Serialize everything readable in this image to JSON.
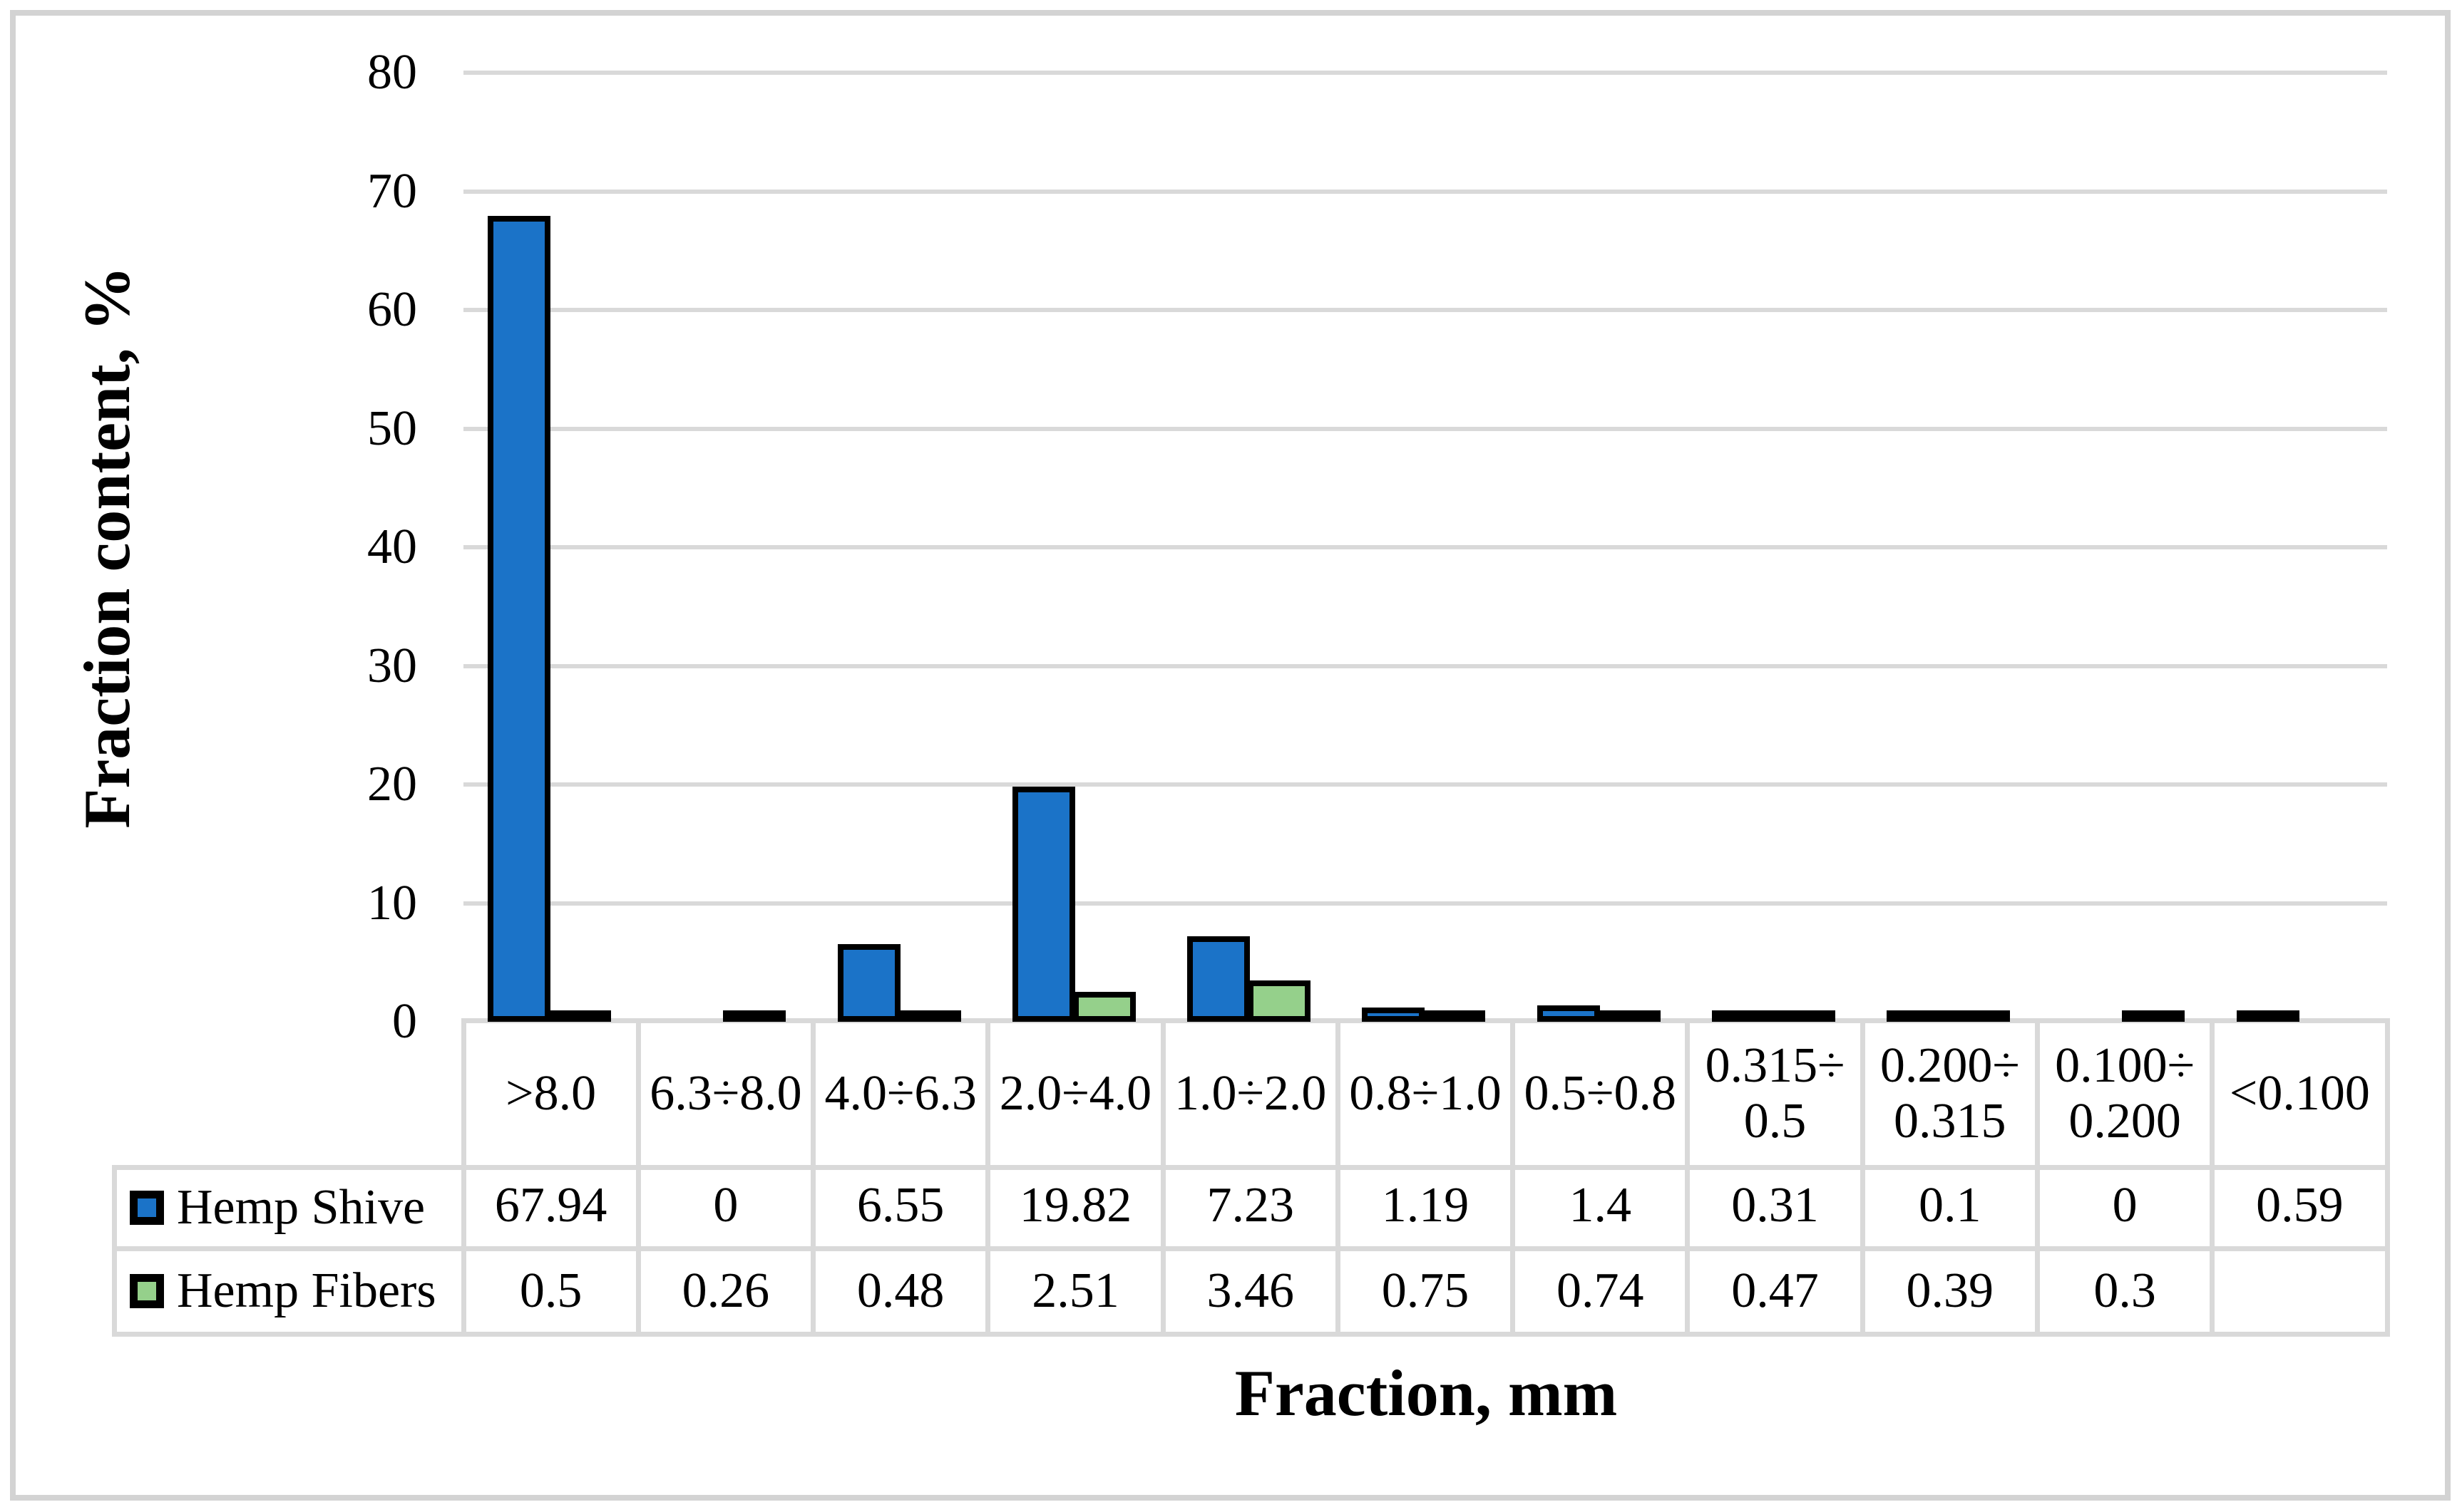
{
  "chart_data": {
    "type": "bar",
    "title": "",
    "xlabel": "Fraction, mm",
    "ylabel": "Fraction content, %",
    "ylim": [
      0,
      80
    ],
    "yticks": [
      0,
      10,
      20,
      30,
      40,
      50,
      60,
      70,
      80
    ],
    "grid": true,
    "legend_position": "table-left",
    "categories": [
      ">8.0",
      "6.3÷8.0",
      "4.0÷6.3",
      "2.0÷4.0",
      "1.0÷2.0",
      "0.8÷1.0",
      "0.5÷0.8",
      "0.315÷0.5",
      "0.200÷0.315",
      "0.100÷0.200",
      "<0.100"
    ],
    "category_display_labels": [
      ">8.0",
      "6.3÷8.0",
      "4.0÷6.3",
      "2.0÷4.0",
      "1.0÷2.0",
      "0.8÷1.0",
      "0.5÷0.8",
      "0.315÷\n0.5",
      "0.200÷\n0.315",
      "0.100÷\n0.200",
      "<0.100"
    ],
    "series": [
      {
        "name": "Hemp Shive",
        "color": "#1b73c8",
        "values": [
          67.94,
          0,
          6.55,
          19.82,
          7.23,
          1.19,
          1.4,
          0.31,
          0.1,
          0,
          0.59
        ],
        "display_values": [
          "67.94",
          "0",
          "6.55",
          "19.82",
          "7.23",
          "1.19",
          "1.4",
          "0.31",
          "0.1",
          "0",
          "0.59"
        ]
      },
      {
        "name": "Hemp Fibers",
        "color": "#95d08b",
        "values": [
          0.5,
          0.26,
          0.48,
          2.51,
          3.46,
          0.75,
          0.74,
          0.47,
          0.39,
          0.3,
          null
        ],
        "display_values": [
          "0.5",
          "0.26",
          "0.48",
          "2.51",
          "3.46",
          "0.75",
          "0.74",
          "0.47",
          "0.39",
          "0.3",
          ""
        ]
      }
    ]
  },
  "style_colors": {
    "grid_line": "#d9d9d9",
    "bar_border": "#000000",
    "frame_border": "#d3d3d3",
    "text": "#000000"
  }
}
